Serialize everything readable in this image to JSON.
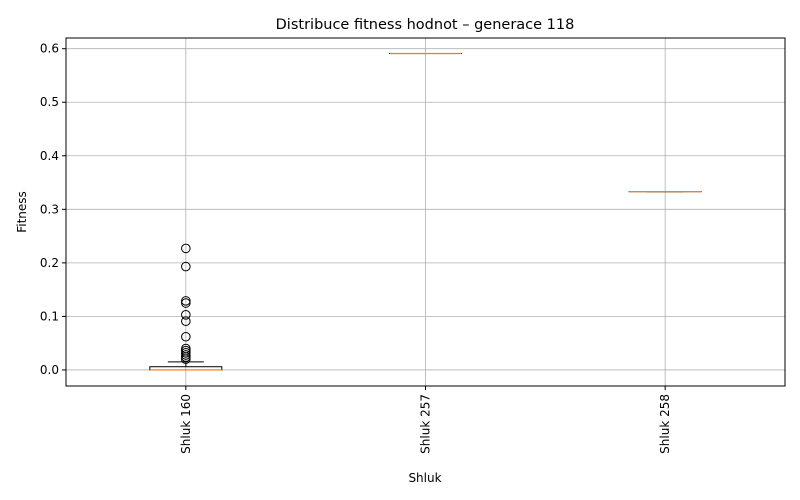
{
  "chart_data": {
    "type": "boxplot",
    "title": "Distribuce fitness hodnot – generace 118",
    "xlabel": "Shluk",
    "ylabel": "Fitness",
    "ylim": [
      -0.03,
      0.62
    ],
    "yticks": [
      0.0,
      0.1,
      0.2,
      0.3,
      0.4,
      0.5,
      0.6
    ],
    "ytick_labels": [
      "0.0",
      "0.1",
      "0.2",
      "0.3",
      "0.4",
      "0.5",
      "0.6"
    ],
    "grid": true,
    "categories": [
      "Shluk 160",
      "Shluk 257",
      "Shluk 258"
    ],
    "boxes": [
      {
        "category": "Shluk 160",
        "whisker_low": 0.0,
        "q1": 0.0,
        "median": 0.0,
        "q3": 0.006,
        "whisker_high": 0.015,
        "outliers": [
          0.02,
          0.024,
          0.028,
          0.032,
          0.036,
          0.04,
          0.062,
          0.091,
          0.103,
          0.125,
          0.129,
          0.193,
          0.227
        ]
      },
      {
        "category": "Shluk 257",
        "whisker_low": 0.591,
        "q1": 0.591,
        "median": 0.591,
        "q3": 0.591,
        "whisker_high": 0.591,
        "outliers": []
      },
      {
        "category": "Shluk 258",
        "whisker_low": 0.333,
        "q1": 0.333,
        "median": 0.333,
        "q3": 0.333,
        "whisker_high": 0.333,
        "outliers": []
      }
    ],
    "colors": {
      "box": "#000000",
      "median": "#ff7f0e",
      "grid": "#b0b0b0",
      "outlier": "#000000"
    }
  }
}
